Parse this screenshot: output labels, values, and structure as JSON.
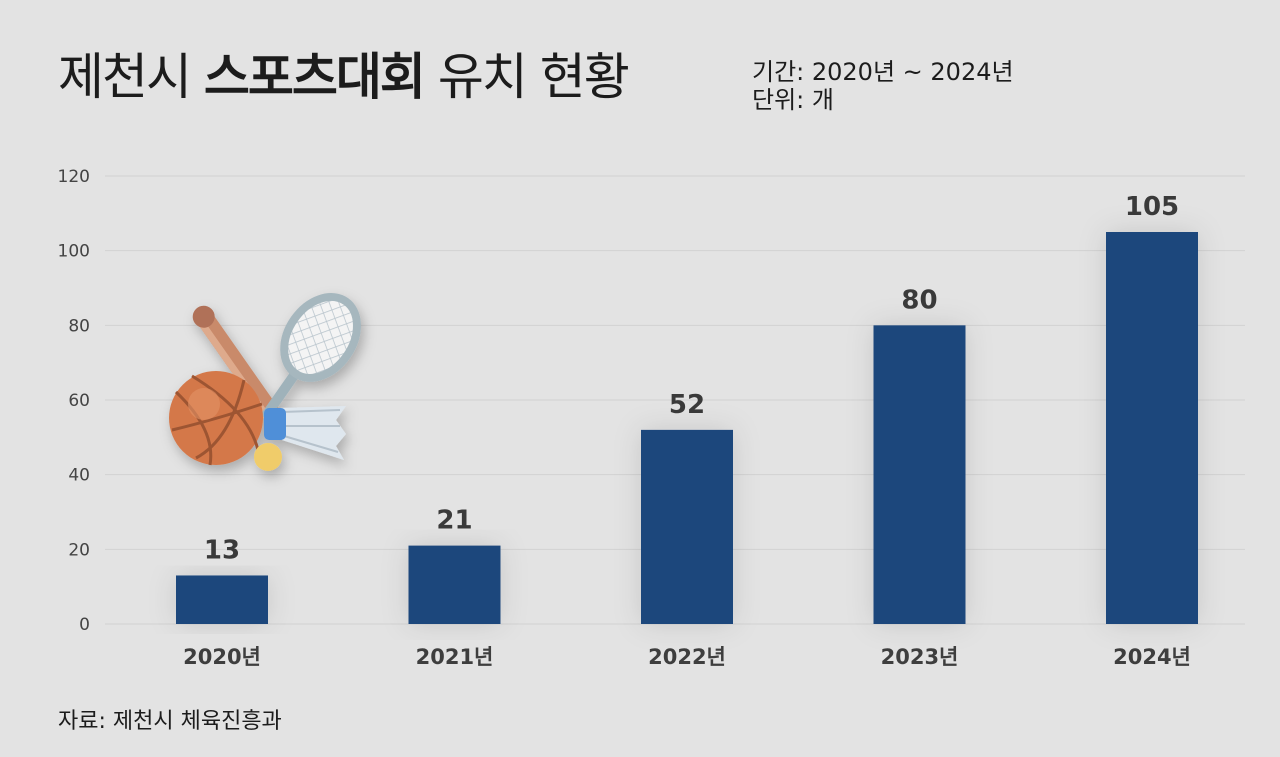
{
  "header": {
    "title_part1": "제천시",
    "title_bold": "스포츠대회",
    "title_part2": "유치 현황",
    "period": "기간: 2020년 ~ 2024년",
    "unit": "단위: 개"
  },
  "footer": {
    "source": "자료: 제천시 체육진흥과"
  },
  "colors": {
    "bar": "#1f477c",
    "background": "#e3e3e3",
    "grid": "#d2d2d2"
  },
  "chart_data": {
    "type": "bar",
    "categories": [
      "2020년",
      "2021년",
      "2022년",
      "2023년",
      "2024년"
    ],
    "values": [
      13,
      21,
      52,
      80,
      105
    ],
    "ylim": [
      0,
      120
    ],
    "yticks": [
      0,
      20,
      40,
      60,
      80,
      100,
      120
    ],
    "grid": true,
    "xlabel": "",
    "ylabel": ""
  },
  "illustration": {
    "icon": "sports-equipment-icon"
  }
}
